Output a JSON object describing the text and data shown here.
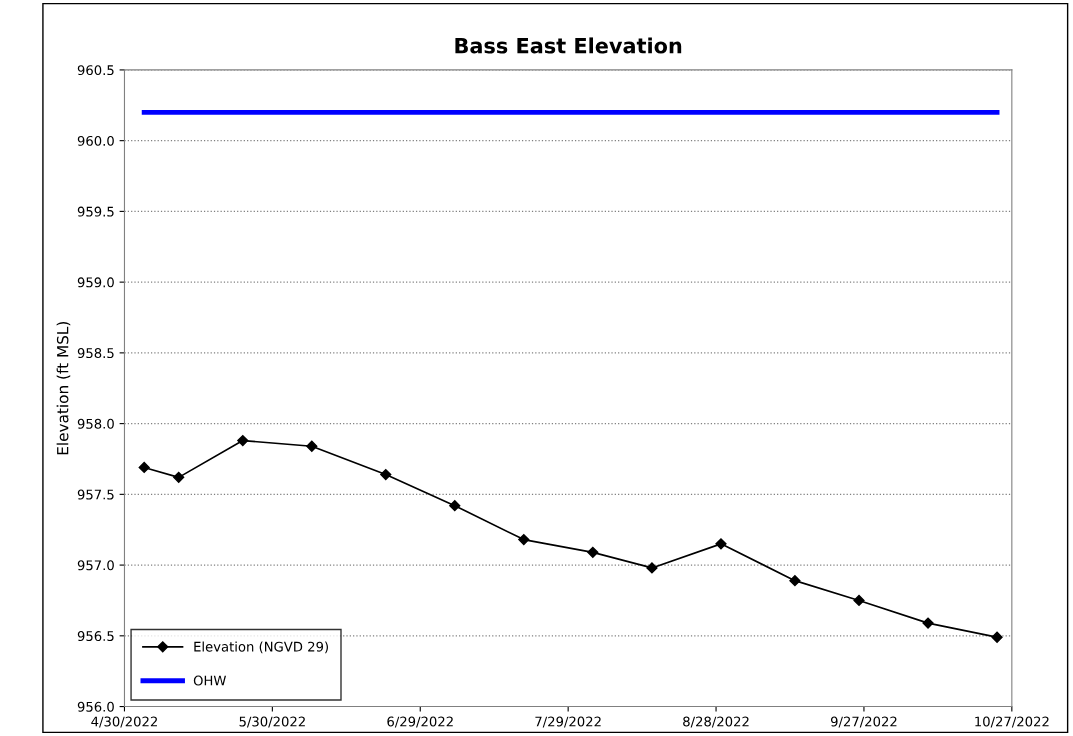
{
  "chart_data": {
    "type": "line",
    "title": "Bass East Elevation",
    "ylabel": "Elevation (ft MSL)",
    "xlim": [
      "2022-04-30",
      "2022-10-27"
    ],
    "xticks": [
      {
        "value": "2022-04-30",
        "label": "4/30/2022"
      },
      {
        "value": "2022-05-30",
        "label": "5/30/2022"
      },
      {
        "value": "2022-06-29",
        "label": "6/29/2022"
      },
      {
        "value": "2022-07-29",
        "label": "7/29/2022"
      },
      {
        "value": "2022-08-28",
        "label": "8/28/2022"
      },
      {
        "value": "2022-09-27",
        "label": "9/27/2022"
      },
      {
        "value": "2022-10-27",
        "label": "10/27/2022"
      }
    ],
    "ylim": [
      956.0,
      960.5
    ],
    "yticks": [
      {
        "value": 956.0,
        "label": "956.0"
      },
      {
        "value": 956.5,
        "label": "956.5"
      },
      {
        "value": 957.0,
        "label": "957.0"
      },
      {
        "value": 957.5,
        "label": "957.5"
      },
      {
        "value": 958.0,
        "label": "958.0"
      },
      {
        "value": 958.5,
        "label": "958.5"
      },
      {
        "value": 959.0,
        "label": "959.0"
      },
      {
        "value": 959.5,
        "label": "959.5"
      },
      {
        "value": 960.0,
        "label": "960.0"
      },
      {
        "value": 960.5,
        "label": "960.5"
      }
    ],
    "grid": "y",
    "legend": "bottom left",
    "series": [
      {
        "name": "Elevation (NGVD 29)",
        "color": "#000000",
        "marker": "diamond",
        "x": [
          "2022-05-04",
          "2022-05-11",
          "2022-05-24",
          "2022-06-07",
          "2022-06-22",
          "2022-07-06",
          "2022-07-20",
          "2022-08-03",
          "2022-08-15",
          "2022-08-29",
          "2022-09-13",
          "2022-09-26",
          "2022-10-10",
          "2022-10-24"
        ],
        "values": [
          957.69,
          957.62,
          957.88,
          957.84,
          957.64,
          957.42,
          957.18,
          957.09,
          956.98,
          957.15,
          956.89,
          956.75,
          956.59,
          956.49
        ]
      },
      {
        "name": "OHW",
        "color": "#0000ff",
        "marker": "none",
        "x": [
          "2022-05-04",
          "2022-10-24"
        ],
        "values": [
          960.2,
          960.2
        ]
      }
    ]
  }
}
